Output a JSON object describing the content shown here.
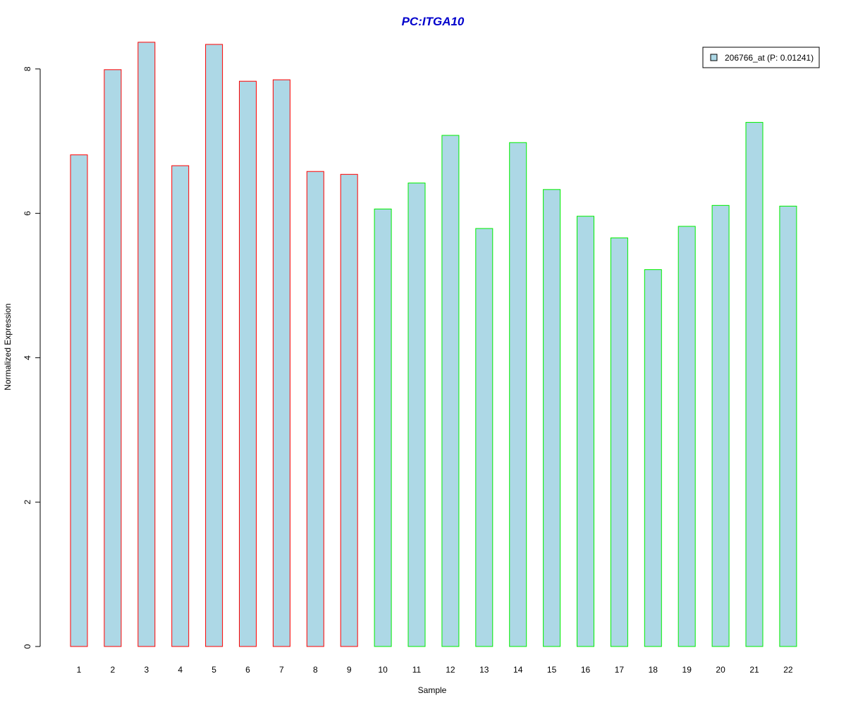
{
  "chart_data": {
    "type": "bar",
    "title": "PC:ITGA10",
    "xlabel": "Sample",
    "ylabel": "Normalized Expression",
    "categories": [
      "1",
      "2",
      "3",
      "4",
      "5",
      "6",
      "7",
      "8",
      "9",
      "10",
      "11",
      "12",
      "13",
      "14",
      "15",
      "16",
      "17",
      "18",
      "19",
      "20",
      "21",
      "22"
    ],
    "series": [
      {
        "name": "206766_at (P: 0.01241)",
        "values": [
          6.81,
          7.99,
          8.37,
          6.66,
          8.34,
          7.83,
          7.85,
          6.58,
          6.54,
          6.06,
          6.42,
          7.08,
          5.79,
          6.98,
          6.33,
          5.96,
          5.66,
          5.22,
          5.82,
          6.11,
          7.26,
          6.1
        ]
      }
    ],
    "yticks": [
      0,
      2,
      4,
      6,
      8
    ],
    "ylim": [
      0,
      8.4
    ],
    "legend_position": "top-right",
    "grid": false,
    "colors": {
      "title": "#0000cc",
      "bar_fill": "#add8e6",
      "group1_border": "#ff0000",
      "group2_border": "#00ee00",
      "axis": "#000000"
    },
    "bar_groups": [
      "group1",
      "group1",
      "group1",
      "group1",
      "group1",
      "group1",
      "group1",
      "group1",
      "group1",
      "group2",
      "group2",
      "group2",
      "group2",
      "group2",
      "group2",
      "group2",
      "group2",
      "group2",
      "group2",
      "group2",
      "group2",
      "group2"
    ]
  }
}
